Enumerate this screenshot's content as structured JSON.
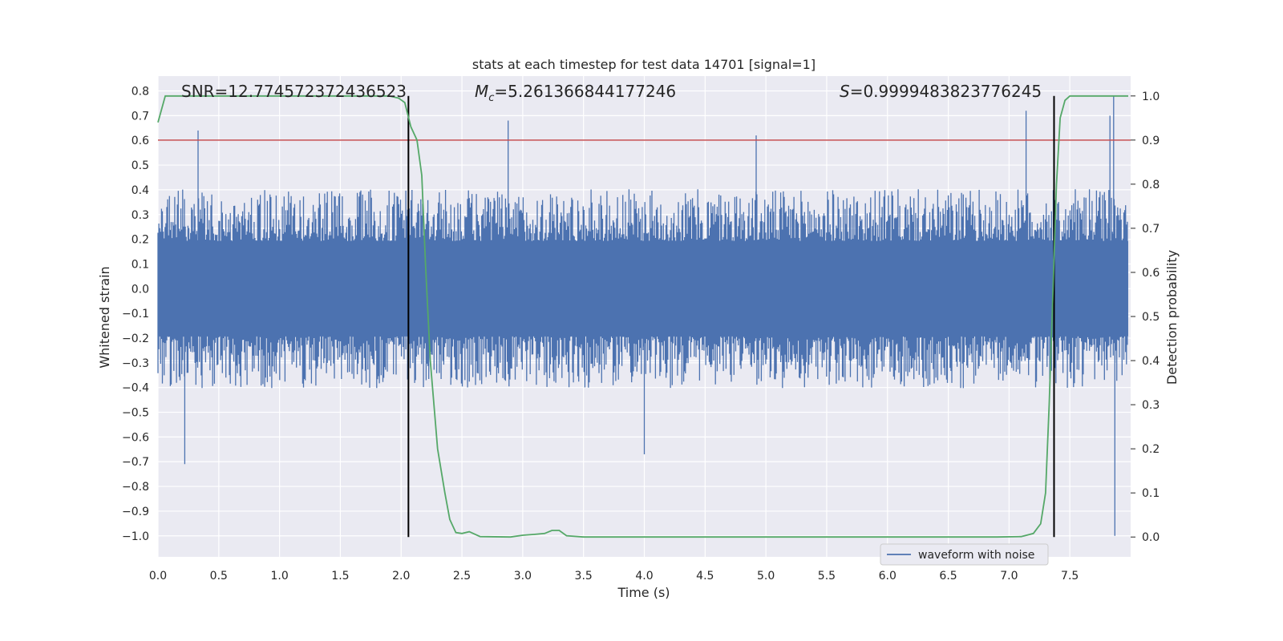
{
  "chart_data": {
    "type": "line",
    "title": "stats at each timestep for test data 14701 [signal=1]",
    "xlabel": "Time (s)",
    "ylabel": "Whitened strain",
    "y2label": "Detection probability",
    "xlim": [
      0.0,
      8.0
    ],
    "ylim": [
      -1.085,
      0.86
    ],
    "y2lim": [
      -0.045,
      1.045
    ],
    "xticks": [
      0.0,
      0.5,
      1.0,
      1.5,
      2.0,
      2.5,
      3.0,
      3.5,
      4.0,
      4.5,
      5.0,
      5.5,
      6.0,
      6.5,
      7.0,
      7.5
    ],
    "xtick_labels": [
      "0.0",
      "0.5",
      "1.0",
      "1.5",
      "2.0",
      "2.5",
      "3.0",
      "3.5",
      "4.0",
      "4.5",
      "5.0",
      "5.5",
      "6.0",
      "6.5",
      "7.0",
      "7.5"
    ],
    "yticks": [
      0.8,
      0.7,
      0.6,
      0.5,
      0.4,
      0.3,
      0.2,
      0.1,
      0.0,
      -0.1,
      -0.2,
      -0.3,
      -0.4,
      -0.5,
      -0.6,
      -0.7,
      -0.8,
      -0.9,
      -1.0
    ],
    "ytick_labels": [
      "0.8",
      "0.7",
      "0.6",
      "0.5",
      "0.4",
      "0.3",
      "0.2",
      "0.1",
      "0.0",
      "−0.1",
      "−0.2",
      "−0.3",
      "−0.4",
      "−0.5",
      "−0.6",
      "−0.7",
      "−0.8",
      "−0.9",
      "−1.0"
    ],
    "y2ticks": [
      1.0,
      0.9,
      0.8,
      0.7,
      0.6,
      0.5,
      0.4,
      0.3,
      0.2,
      0.1,
      0.0
    ],
    "y2tick_labels": [
      "1.0",
      "0.9",
      "0.8",
      "0.7",
      "0.6",
      "0.5",
      "0.4",
      "0.3",
      "0.2",
      "0.1",
      "0.0"
    ],
    "grid": true,
    "legend_position": "lower-right",
    "annotations": {
      "snr": "SNR=12.774572372436523",
      "mc_symbol": "M",
      "mc_sub": "c",
      "mc_value": "=5.261366844177246",
      "s_symbol": "S",
      "s_value": "=0.9999483823776245"
    },
    "threshold_line": {
      "y2": 0.9,
      "color": "#c44e52"
    },
    "vertical_markers": [
      2.06,
      7.37
    ],
    "series": [
      {
        "name": "waveform with noise",
        "color": "#4c72b0",
        "axis": "left",
        "envelope": {
          "typical_upper": 0.35,
          "typical_lower": -0.35,
          "peak_max": 0.78,
          "peak_min": -1.0,
          "notable_peaks": [
            [
              0.33,
              0.64
            ],
            [
              0.22,
              -0.71
            ],
            [
              2.88,
              0.68
            ],
            [
              4.92,
              0.62
            ],
            [
              4.0,
              -0.67
            ],
            [
              7.14,
              0.72
            ],
            [
              7.86,
              0.78
            ],
            [
              7.87,
              -1.0
            ],
            [
              7.83,
              0.7
            ]
          ]
        }
      },
      {
        "axis": "right",
        "color": "#55a868",
        "x": [
          0.0,
          0.06,
          0.15,
          0.5,
          1.0,
          1.5,
          1.9,
          1.98,
          2.03,
          2.08,
          2.13,
          2.17,
          2.2,
          2.24,
          2.3,
          2.36,
          2.4,
          2.45,
          2.5,
          2.56,
          2.65,
          2.9,
          3.0,
          3.1,
          3.18,
          3.24,
          3.3,
          3.36,
          3.5,
          4.0,
          4.5,
          5.0,
          5.5,
          6.0,
          6.5,
          6.9,
          7.1,
          7.2,
          7.26,
          7.3,
          7.33,
          7.36,
          7.39,
          7.42,
          7.46,
          7.5,
          7.6,
          7.98
        ],
        "values": [
          0.94,
          1.0,
          1.0,
          1.0,
          1.0,
          1.0,
          1.0,
          0.995,
          0.985,
          0.93,
          0.9,
          0.82,
          0.62,
          0.4,
          0.2,
          0.1,
          0.04,
          0.01,
          0.008,
          0.012,
          0.001,
          0.0,
          0.004,
          0.006,
          0.008,
          0.015,
          0.015,
          0.003,
          0.0,
          0.0,
          0.0,
          0.0,
          0.0,
          0.0,
          0.0,
          0.0,
          0.001,
          0.008,
          0.03,
          0.1,
          0.3,
          0.55,
          0.8,
          0.95,
          0.99,
          1.0,
          1.0,
          1.0
        ]
      }
    ]
  }
}
